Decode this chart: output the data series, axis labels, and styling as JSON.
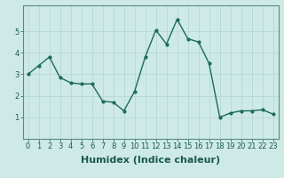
{
  "x": [
    0,
    1,
    2,
    3,
    4,
    5,
    6,
    7,
    8,
    9,
    10,
    11,
    12,
    13,
    14,
    15,
    16,
    17,
    18,
    19,
    20,
    21,
    22,
    23
  ],
  "y": [
    3.0,
    3.4,
    3.8,
    2.85,
    2.6,
    2.55,
    2.55,
    1.75,
    1.7,
    1.3,
    2.2,
    3.8,
    5.05,
    4.4,
    5.55,
    4.65,
    4.5,
    3.5,
    1.0,
    1.2,
    1.3,
    1.3,
    1.35,
    1.15
  ],
  "line_color": "#1a6b5a",
  "marker": "o",
  "marker_size": 2.0,
  "linewidth": 1.0,
  "xlabel": "Humidex (Indice chaleur)",
  "ylabel": "",
  "xlim": [
    -0.5,
    23.5
  ],
  "ylim": [
    0,
    6.2
  ],
  "yticks": [
    1,
    2,
    3,
    4,
    5
  ],
  "xticks": [
    0,
    1,
    2,
    3,
    4,
    5,
    6,
    7,
    8,
    9,
    10,
    11,
    12,
    13,
    14,
    15,
    16,
    17,
    18,
    19,
    20,
    21,
    22,
    23
  ],
  "xtick_labels": [
    "0",
    "1",
    "2",
    "3",
    "4",
    "5",
    "6",
    "7",
    "8",
    "9",
    "10",
    "11",
    "12",
    "13",
    "14",
    "15",
    "16",
    "17",
    "18",
    "19",
    "20",
    "21",
    "22",
    "23"
  ],
  "background_color": "#ceeae6",
  "grid_color": "#b8d8d4",
  "tick_fontsize": 6,
  "xlabel_fontsize": 8
}
